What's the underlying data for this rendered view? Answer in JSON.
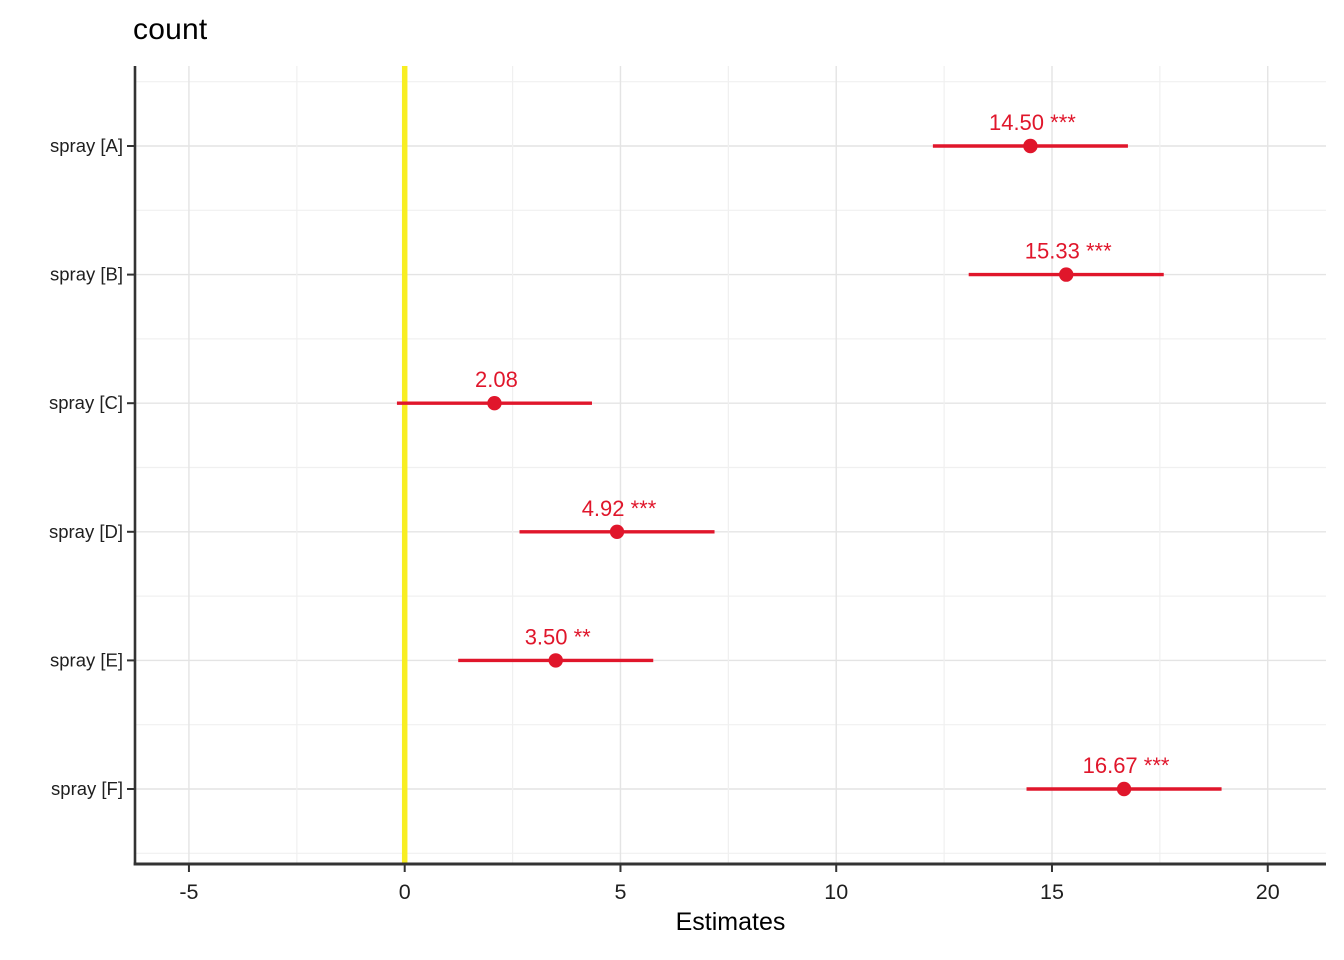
{
  "chart_data": {
    "type": "scatter",
    "subtype": "forest-plot-with-error-bars",
    "title": "count",
    "xlabel": "Estimates",
    "categories": [
      "spray [A]",
      "spray [B]",
      "spray [C]",
      "spray [D]",
      "spray [E]",
      "spray [F]"
    ],
    "points": [
      {
        "category": "spray [A]",
        "estimate": 14.5,
        "ci_low": 12.24,
        "ci_high": 16.76,
        "label": "14.50 ***"
      },
      {
        "category": "spray [B]",
        "estimate": 15.33,
        "ci_low": 13.07,
        "ci_high": 17.59,
        "label": "15.33 ***"
      },
      {
        "category": "spray [C]",
        "estimate": 2.08,
        "ci_low": -0.18,
        "ci_high": 4.34,
        "label": "2.08"
      },
      {
        "category": "spray [D]",
        "estimate": 4.92,
        "ci_low": 2.66,
        "ci_high": 7.18,
        "label": "4.92 ***"
      },
      {
        "category": "spray [E]",
        "estimate": 3.5,
        "ci_low": 1.24,
        "ci_high": 5.76,
        "label": "3.50 **"
      },
      {
        "category": "spray [F]",
        "estimate": 16.67,
        "ci_low": 14.41,
        "ci_high": 18.93,
        "label": "16.67 ***"
      }
    ],
    "x_ticks": [
      -5,
      0,
      5,
      10,
      15,
      20
    ],
    "x_minor_ticks": [
      -2.5,
      2.5,
      7.5,
      12.5,
      17.5
    ],
    "xlim": [
      -6.25,
      21.35
    ],
    "vline_x": 0,
    "grid": true,
    "legend": "none",
    "colors": {
      "estimate": "#e0162b",
      "vline": "#f8ee22",
      "grid_major": "#e4e4e4",
      "grid_minor": "#f0f0f0",
      "axis": "#333333",
      "tick_text": "#1f1f1f"
    }
  }
}
